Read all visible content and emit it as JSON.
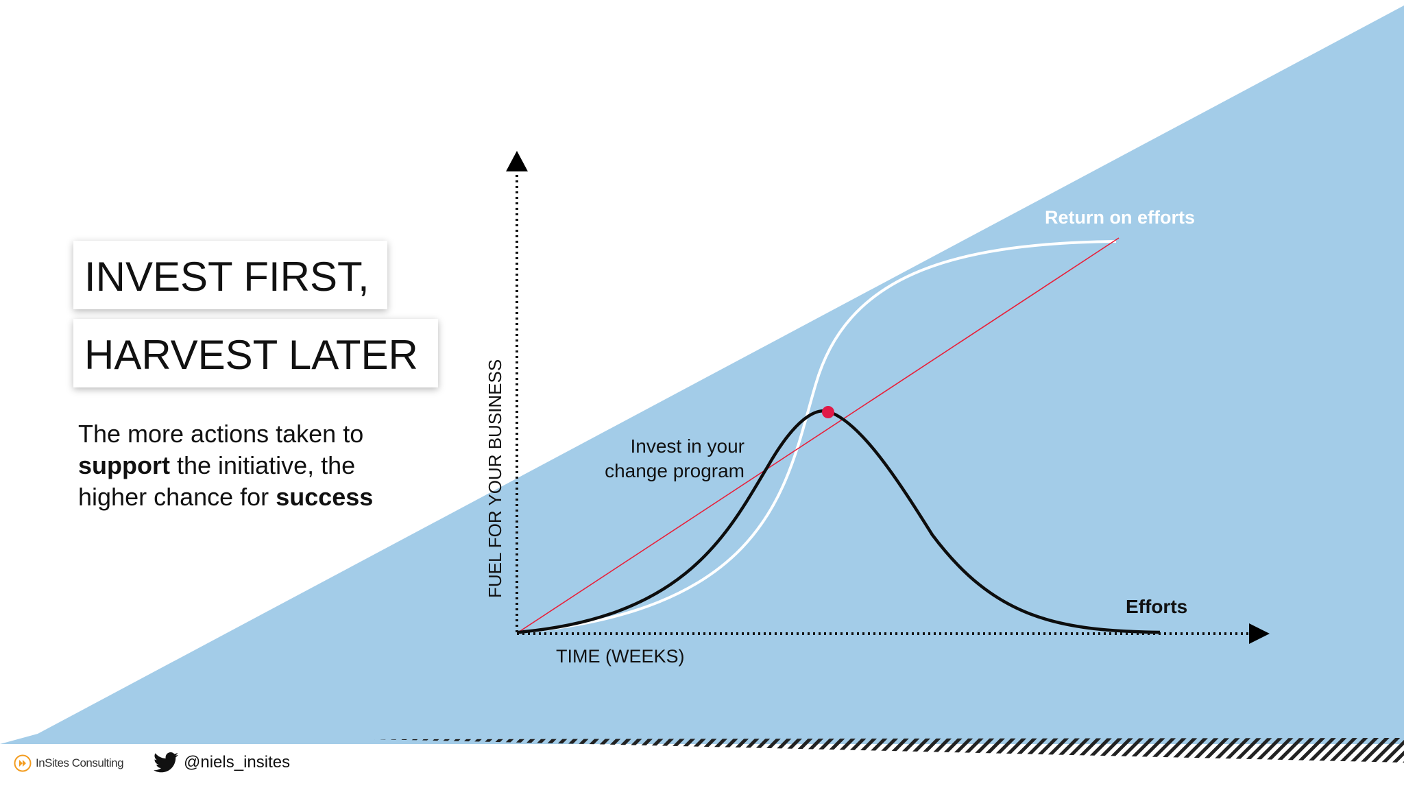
{
  "slide": {
    "title_line_1": "INVEST FIRST,",
    "title_line_2": "HARVEST LATER",
    "body": {
      "part_1": "The more actions taken to",
      "bold_1": "support",
      "part_2": "the initiative, the",
      "part_3": "higher chance for",
      "bold_2": "success"
    }
  },
  "diagram": {
    "y_axis_label": "FUEL FOR YOUR BUSINESS",
    "x_axis_label": "TIME (WEEKS)",
    "curve_return_label": "Return on efforts",
    "curve_efforts_label": "Efforts",
    "annotation_line_1": "Invest in your",
    "annotation_line_2": "change program"
  },
  "footer": {
    "brand": "InSites Consulting",
    "handle": "@niels_insites",
    "icons": [
      "insites-logo-icon",
      "twitter-bird-icon"
    ]
  },
  "colors": {
    "background": "#ffffff",
    "triangle_fill": "#a3cce8",
    "return_curve": "#ffffff",
    "efforts_curve": "#0d0d0d",
    "trend_line": "#e8203a",
    "intersection_dot": "#e01a48",
    "brand_orange": "#f39c1f"
  }
}
